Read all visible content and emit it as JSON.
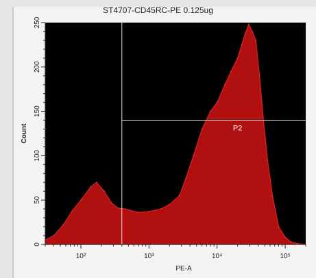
{
  "chart_data": {
    "type": "area",
    "title": "ST4707-CD45RC-PE 0.125ug",
    "xlabel": "PE-A",
    "ylabel": "Count",
    "x_scale": "log",
    "xlim": [
      30,
      200000
    ],
    "ylim": [
      0,
      250
    ],
    "x_ticks": [
      {
        "value": 100,
        "label": "10²"
      },
      {
        "value": 1000,
        "label": "10³"
      },
      {
        "value": 10000,
        "label": "10⁴"
      },
      {
        "value": 100000,
        "label": "10⁵"
      }
    ],
    "y_ticks": [
      {
        "value": 0,
        "label": "0"
      },
      {
        "value": 50,
        "label": "50"
      },
      {
        "value": 100,
        "label": "100"
      },
      {
        "value": 150,
        "label": "150"
      },
      {
        "value": 200,
        "label": "200"
      },
      {
        "value": 250,
        "label": "250"
      }
    ],
    "grid": false,
    "series": [
      {
        "color": "#b01010",
        "x": [
          30,
          40,
          55,
          75,
          100,
          140,
          170,
          220,
          280,
          350,
          450,
          700,
          1000,
          1500,
          2000,
          2800,
          3500,
          4500,
          6000,
          8000,
          10000,
          13000,
          16000,
          20000,
          23000,
          26000,
          29000,
          33000,
          37000,
          42000,
          48000,
          55000,
          65000,
          80000,
          100000,
          120000,
          150000,
          200000
        ],
        "y": [
          5,
          10,
          22,
          38,
          50,
          65,
          70,
          60,
          47,
          41,
          40,
          36,
          37,
          40,
          45,
          55,
          75,
          100,
          130,
          150,
          160,
          180,
          195,
          210,
          225,
          238,
          248,
          240,
          230,
          190,
          140,
          95,
          55,
          20,
          8,
          3,
          1,
          0
        ]
      }
    ],
    "gate": {
      "label": "P2",
      "x_min": 400,
      "x_max": 200000,
      "y": 140
    }
  }
}
